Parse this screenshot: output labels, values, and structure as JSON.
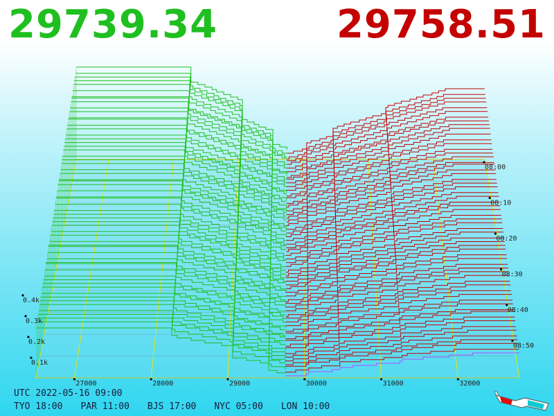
{
  "bid_price": "29739.34",
  "ask_price": "29758.51",
  "colors": {
    "bid": "#1fbf1f",
    "ask": "#c40000",
    "grid": "#e6e600",
    "last_row": "#b050ff"
  },
  "info": {
    "utc": "UTC 2022-05-16 09:00",
    "zones": [
      "TYO 18:00",
      "PAR 11:00",
      "BJS 17:00",
      "NYC 05:00",
      "LON 10:00"
    ]
  },
  "icon": "3d-glasses-icon",
  "chart_data": {
    "type": "area",
    "title": "",
    "x_ticks": [
      "27000",
      "28000",
      "29000",
      "30000",
      "31000",
      "32000"
    ],
    "x_values": [
      27000,
      28000,
      29000,
      30000,
      31000,
      32000
    ],
    "xlim": [
      26500,
      32800
    ],
    "z_ticks": [
      "0.1k",
      "0.2k",
      "0.3k",
      "0.4k"
    ],
    "z_values": [
      100,
      200,
      300,
      400
    ],
    "time_ticks": [
      "08:00",
      "08:10",
      "08:20",
      "08:30",
      "08:40",
      "08:50"
    ],
    "mid_price": 29749,
    "bid_depth_max": 430,
    "ask_depth_max": 330,
    "series": [
      {
        "name": "bids",
        "side": "bid"
      },
      {
        "name": "asks",
        "side": "ask"
      }
    ]
  }
}
